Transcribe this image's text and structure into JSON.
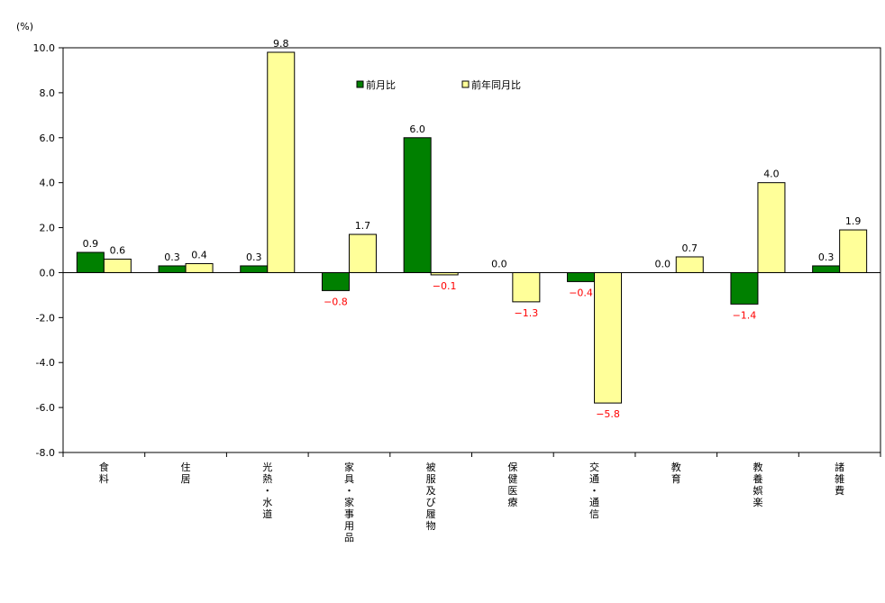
{
  "chart_data": {
    "type": "bar",
    "unit_label": "(%)",
    "categories": [
      "食料",
      "住居",
      "光熱・水道",
      "家具・家事用品",
      "被服及び履物",
      "保健医療",
      "交通・通信",
      "教育",
      "教養娯楽",
      "諸雑費"
    ],
    "series": [
      {
        "name": "前月比",
        "color": "#008000",
        "values": [
          0.9,
          0.3,
          0.3,
          -0.8,
          6.0,
          0.0,
          -0.4,
          0.0,
          -1.4,
          0.3
        ]
      },
      {
        "name": "前年同月比",
        "color": "#FFFF99",
        "values": [
          0.6,
          0.4,
          9.8,
          1.7,
          -0.1,
          -1.3,
          -5.8,
          0.7,
          4.0,
          1.9
        ]
      }
    ],
    "ylim": [
      -8.0,
      10.0
    ],
    "ytick_step": 2.0,
    "yticks": [
      "10.0",
      "8.0",
      "6.0",
      "4.0",
      "2.0",
      "0.0",
      "-2.0",
      "-4.0",
      "-6.0",
      "-8.0"
    ],
    "data_labels": {
      "前月比": [
        "0.9",
        "0.3",
        "0.3",
        "−0.8",
        "6.0",
        "0.0",
        "−0.4",
        "0.0",
        "−1.4",
        "0.3"
      ],
      "前年同月比": [
        "0.6",
        "0.4",
        "9.8",
        "1.7",
        "−0.1",
        "−1.3",
        "−5.8",
        "0.7",
        "4.0",
        "1.9"
      ]
    },
    "positive_label_color": "#000000",
    "negative_label_color": "#FF0000",
    "legend_position": "top-center",
    "grid": false,
    "xlabel": "",
    "ylabel": ""
  }
}
